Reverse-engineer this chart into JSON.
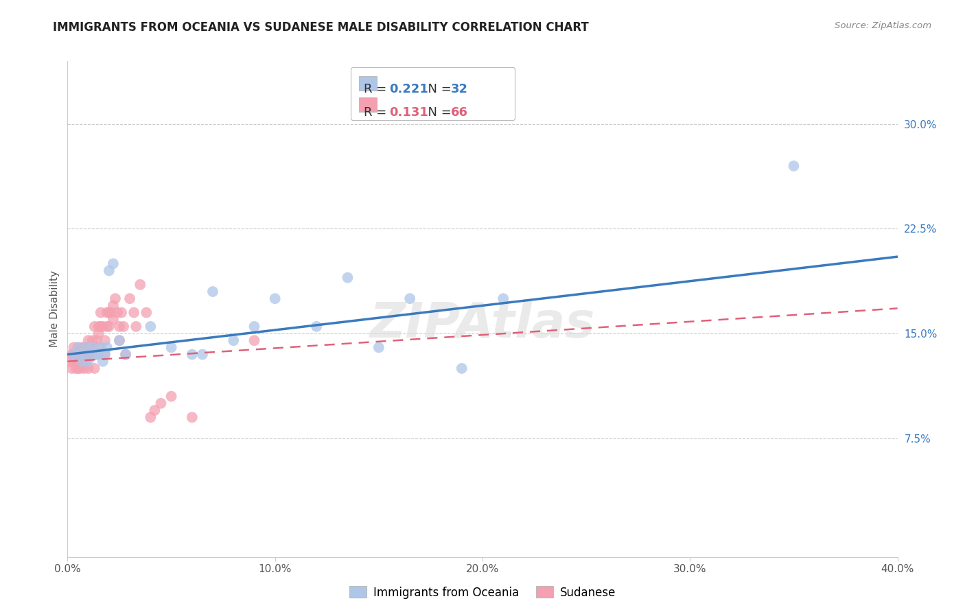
{
  "title": "IMMIGRANTS FROM OCEANIA VS SUDANESE MALE DISABILITY CORRELATION CHART",
  "source": "Source: ZipAtlas.com",
  "ylabel": "Male Disability",
  "yticks": [
    "7.5%",
    "15.0%",
    "22.5%",
    "30.0%"
  ],
  "ytick_vals": [
    0.075,
    0.15,
    0.225,
    0.3
  ],
  "xlim": [
    0.0,
    0.4
  ],
  "ylim": [
    -0.01,
    0.345
  ],
  "legend1_color": "#aec6e8",
  "legend2_color": "#f4a0b0",
  "blue_line_color": "#3a7abf",
  "pink_line_color": "#e0607a",
  "watermark": "ZIPAtlas",
  "blue_R": 0.221,
  "blue_N": 32,
  "pink_R": 0.131,
  "pink_N": 66,
  "blue_x": [
    0.003,
    0.005,
    0.007,
    0.008,
    0.009,
    0.01,
    0.012,
    0.013,
    0.015,
    0.016,
    0.017,
    0.018,
    0.019,
    0.02,
    0.022,
    0.025,
    0.028,
    0.04,
    0.05,
    0.06,
    0.065,
    0.07,
    0.08,
    0.09,
    0.1,
    0.12,
    0.135,
    0.15,
    0.165,
    0.19,
    0.21,
    0.35
  ],
  "blue_y": [
    0.135,
    0.14,
    0.13,
    0.135,
    0.14,
    0.13,
    0.14,
    0.135,
    0.135,
    0.14,
    0.13,
    0.135,
    0.14,
    0.195,
    0.2,
    0.145,
    0.135,
    0.155,
    0.14,
    0.135,
    0.135,
    0.18,
    0.145,
    0.155,
    0.175,
    0.155,
    0.19,
    0.14,
    0.175,
    0.125,
    0.175,
    0.27
  ],
  "pink_x": [
    0.001,
    0.002,
    0.002,
    0.003,
    0.003,
    0.004,
    0.004,
    0.005,
    0.005,
    0.005,
    0.006,
    0.006,
    0.007,
    0.007,
    0.008,
    0.008,
    0.008,
    0.009,
    0.009,
    0.009,
    0.01,
    0.01,
    0.01,
    0.01,
    0.011,
    0.011,
    0.012,
    0.012,
    0.013,
    0.013,
    0.013,
    0.014,
    0.014,
    0.015,
    0.015,
    0.015,
    0.016,
    0.016,
    0.017,
    0.018,
    0.018,
    0.019,
    0.019,
    0.02,
    0.02,
    0.021,
    0.022,
    0.022,
    0.023,
    0.024,
    0.025,
    0.025,
    0.026,
    0.027,
    0.028,
    0.03,
    0.032,
    0.033,
    0.035,
    0.038,
    0.04,
    0.042,
    0.045,
    0.05,
    0.06,
    0.09
  ],
  "pink_y": [
    0.13,
    0.135,
    0.125,
    0.14,
    0.13,
    0.125,
    0.135,
    0.14,
    0.13,
    0.125,
    0.135,
    0.125,
    0.14,
    0.13,
    0.14,
    0.135,
    0.125,
    0.14,
    0.135,
    0.13,
    0.145,
    0.14,
    0.135,
    0.125,
    0.14,
    0.135,
    0.145,
    0.135,
    0.155,
    0.135,
    0.125,
    0.145,
    0.135,
    0.155,
    0.15,
    0.14,
    0.165,
    0.155,
    0.155,
    0.145,
    0.135,
    0.165,
    0.155,
    0.165,
    0.155,
    0.165,
    0.17,
    0.16,
    0.175,
    0.165,
    0.155,
    0.145,
    0.165,
    0.155,
    0.135,
    0.175,
    0.165,
    0.155,
    0.185,
    0.165,
    0.09,
    0.095,
    0.1,
    0.105,
    0.09,
    0.145
  ]
}
